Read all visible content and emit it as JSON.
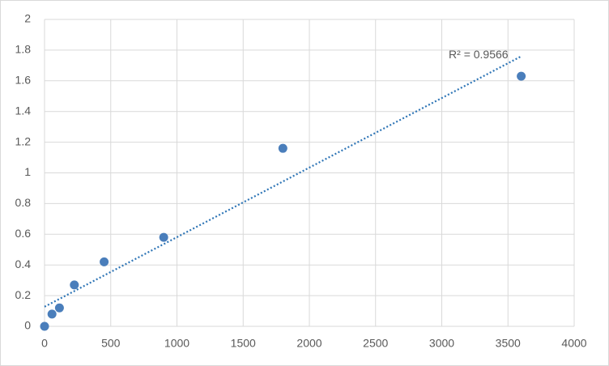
{
  "chart_data": {
    "type": "scatter",
    "x": [
      0,
      56.25,
      112.5,
      225,
      450,
      900,
      1800,
      3600
    ],
    "values": [
      0,
      0.08,
      0.12,
      0.27,
      0.42,
      0.58,
      1.16,
      1.63
    ],
    "color": "#4a7ebb",
    "xlim": [
      0,
      4000
    ],
    "xticks": [
      0,
      500,
      1000,
      1500,
      2000,
      2500,
      3000,
      3500,
      4000
    ],
    "ylim": [
      0,
      2
    ],
    "yticks": [
      0,
      0.2,
      0.4,
      0.6,
      0.8,
      1,
      1.2,
      1.4,
      1.6,
      1.8,
      2
    ],
    "grid": true,
    "trendline": {
      "type": "linear",
      "label": "R² = 0.9566",
      "color": "#2e75b6"
    }
  }
}
